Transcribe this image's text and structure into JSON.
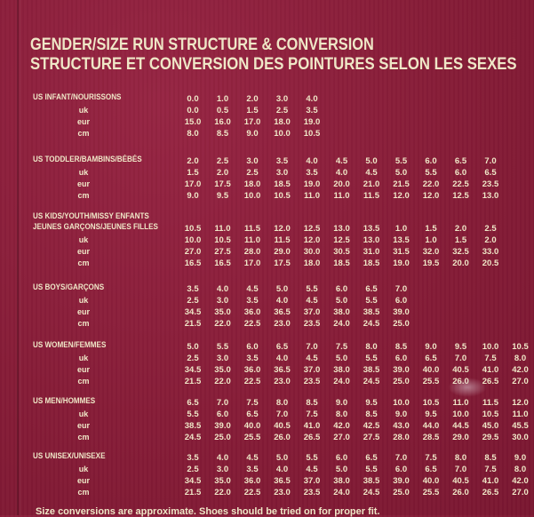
{
  "title_line1": "GENDER/SIZE RUN STRUCTURE & CONVERSION",
  "title_line2": "STRUCTURE ET CONVERSION DES POINTURES SELON LES SEXES",
  "footer_note": "Size conversions are approximate. Shoes should be tried on for proper fit.",
  "sections": [
    {
      "headings": [
        "US INFANT/NOURISSONS"
      ],
      "rows": [
        {
          "label": "",
          "values": [
            "0.0",
            "1.0",
            "2.0",
            "3.0",
            "4.0"
          ]
        },
        {
          "label": "uk",
          "values": [
            "0.0",
            "0.5",
            "1.5",
            "2.5",
            "3.5"
          ]
        },
        {
          "label": "eur",
          "values": [
            "15.0",
            "16.0",
            "17.0",
            "18.0",
            "19.0"
          ]
        },
        {
          "label": "cm",
          "values": [
            "8.0",
            "8.5",
            "9.0",
            "10.0",
            "10.5"
          ]
        }
      ]
    },
    {
      "headings": [
        "US TODDLER/BAMBINS/BÉBÉS"
      ],
      "rows": [
        {
          "label": "",
          "values": [
            "2.0",
            "2.5",
            "3.0",
            "3.5",
            "4.0",
            "4.5",
            "5.0",
            "5.5",
            "6.0",
            "6.5",
            "7.0"
          ]
        },
        {
          "label": "uk",
          "values": [
            "1.5",
            "2.0",
            "2.5",
            "3.0",
            "3.5",
            "4.0",
            "4.5",
            "5.0",
            "5.5",
            "6.0",
            "6.5"
          ]
        },
        {
          "label": "eur",
          "values": [
            "17.0",
            "17.5",
            "18.0",
            "18.5",
            "19.0",
            "20.0",
            "21.0",
            "21.5",
            "22.0",
            "22.5",
            "23.5"
          ]
        },
        {
          "label": "cm",
          "values": [
            "9.0",
            "9.5",
            "10.0",
            "10.5",
            "11.0",
            "11.0",
            "11.5",
            "12.0",
            "12.0",
            "12.5",
            "13.0"
          ]
        }
      ]
    },
    {
      "headings": [
        "US KIDS/YOUTH/MISSY ENFANTS",
        "JEUNES GARÇONS/JEUNES FILLES"
      ],
      "rows": [
        {
          "label": "",
          "values": [
            "10.5",
            "11.0",
            "11.5",
            "12.0",
            "12.5",
            "13.0",
            "13.5",
            "1.0",
            "1.5",
            "2.0",
            "2.5"
          ]
        },
        {
          "label": "uk",
          "values": [
            "10.0",
            "10.5",
            "11.0",
            "11.5",
            "12.0",
            "12.5",
            "13.0",
            "13.5",
            "1.0",
            "1.5",
            "2.0"
          ]
        },
        {
          "label": "eur",
          "values": [
            "27.0",
            "27.5",
            "28.0",
            "29.0",
            "30.0",
            "30.5",
            "31.0",
            "31.5",
            "32.0",
            "32.5",
            "33.0"
          ]
        },
        {
          "label": "cm",
          "values": [
            "16.5",
            "16.5",
            "17.0",
            "17.5",
            "18.0",
            "18.5",
            "18.5",
            "19.0",
            "19.5",
            "20.0",
            "20.5"
          ]
        }
      ]
    },
    {
      "headings": [
        "US BOYS/GARÇONS"
      ],
      "rows": [
        {
          "label": "",
          "values": [
            "3.5",
            "4.0",
            "4.5",
            "5.0",
            "5.5",
            "6.0",
            "6.5",
            "7.0"
          ]
        },
        {
          "label": "uk",
          "values": [
            "2.5",
            "3.0",
            "3.5",
            "4.0",
            "4.5",
            "5.0",
            "5.5",
            "6.0"
          ]
        },
        {
          "label": "eur",
          "values": [
            "34.5",
            "35.0",
            "36.0",
            "36.5",
            "37.0",
            "38.0",
            "38.5",
            "39.0"
          ]
        },
        {
          "label": "cm",
          "values": [
            "21.5",
            "22.0",
            "22.5",
            "23.0",
            "23.5",
            "24.0",
            "24.5",
            "25.0"
          ]
        }
      ]
    },
    {
      "headings": [
        "US WOMEN/FEMMES"
      ],
      "rows": [
        {
          "label": "",
          "values": [
            "5.0",
            "5.5",
            "6.0",
            "6.5",
            "7.0",
            "7.5",
            "8.0",
            "8.5",
            "9.0",
            "9.5",
            "10.0",
            "10.5"
          ]
        },
        {
          "label": "uk",
          "values": [
            "2.5",
            "3.0",
            "3.5",
            "4.0",
            "4.5",
            "5.0",
            "5.5",
            "6.0",
            "6.5",
            "7.0",
            "7.5",
            "8.0"
          ]
        },
        {
          "label": "eur",
          "values": [
            "34.5",
            "35.0",
            "36.0",
            "36.5",
            "37.0",
            "38.0",
            "38.5",
            "39.0",
            "40.0",
            "40.5",
            "41.0",
            "42.0"
          ]
        },
        {
          "label": "cm",
          "values": [
            "21.5",
            "22.0",
            "22.5",
            "23.0",
            "23.5",
            "24.0",
            "24.5",
            "25.0",
            "25.5",
            "26.0",
            "26.5",
            "27.0"
          ]
        }
      ]
    },
    {
      "headings": [
        "US MEN/HOMMES"
      ],
      "rows": [
        {
          "label": "",
          "values": [
            "6.5",
            "7.0",
            "7.5",
            "8.0",
            "8.5",
            "9.0",
            "9.5",
            "10.0",
            "10.5",
            "11.0",
            "11.5",
            "12.0"
          ]
        },
        {
          "label": "uk",
          "values": [
            "5.5",
            "6.0",
            "6.5",
            "7.0",
            "7.5",
            "8.0",
            "8.5",
            "9.0",
            "9.5",
            "10.0",
            "10.5",
            "11.0"
          ]
        },
        {
          "label": "eur",
          "values": [
            "38.5",
            "39.0",
            "40.0",
            "40.5",
            "41.0",
            "42.0",
            "42.5",
            "43.0",
            "44.0",
            "44.5",
            "45.0",
            "45.5"
          ]
        },
        {
          "label": "cm",
          "values": [
            "24.5",
            "25.0",
            "25.5",
            "26.0",
            "26.5",
            "27.0",
            "27.5",
            "28.0",
            "28.5",
            "29.0",
            "29.5",
            "30.0"
          ]
        }
      ]
    },
    {
      "headings": [
        "US UNISEX/UNISEXE"
      ],
      "rows": [
        {
          "label": "",
          "values": [
            "3.5",
            "4.0",
            "4.5",
            "5.0",
            "5.5",
            "6.0",
            "6.5",
            "7.0",
            "7.5",
            "8.0",
            "8.5",
            "9.0"
          ]
        },
        {
          "label": "uk",
          "values": [
            "2.5",
            "3.0",
            "3.5",
            "4.0",
            "4.5",
            "5.0",
            "5.5",
            "6.0",
            "6.5",
            "7.0",
            "7.5",
            "8.0"
          ]
        },
        {
          "label": "eur",
          "values": [
            "34.5",
            "35.0",
            "36.0",
            "36.5",
            "37.0",
            "38.0",
            "38.5",
            "39.0",
            "40.0",
            "40.5",
            "41.0",
            "42.0"
          ]
        },
        {
          "label": "cm",
          "values": [
            "21.5",
            "22.0",
            "22.5",
            "23.0",
            "23.5",
            "24.0",
            "24.5",
            "25.0",
            "25.5",
            "26.0",
            "26.5",
            "27.0"
          ]
        }
      ]
    }
  ]
}
